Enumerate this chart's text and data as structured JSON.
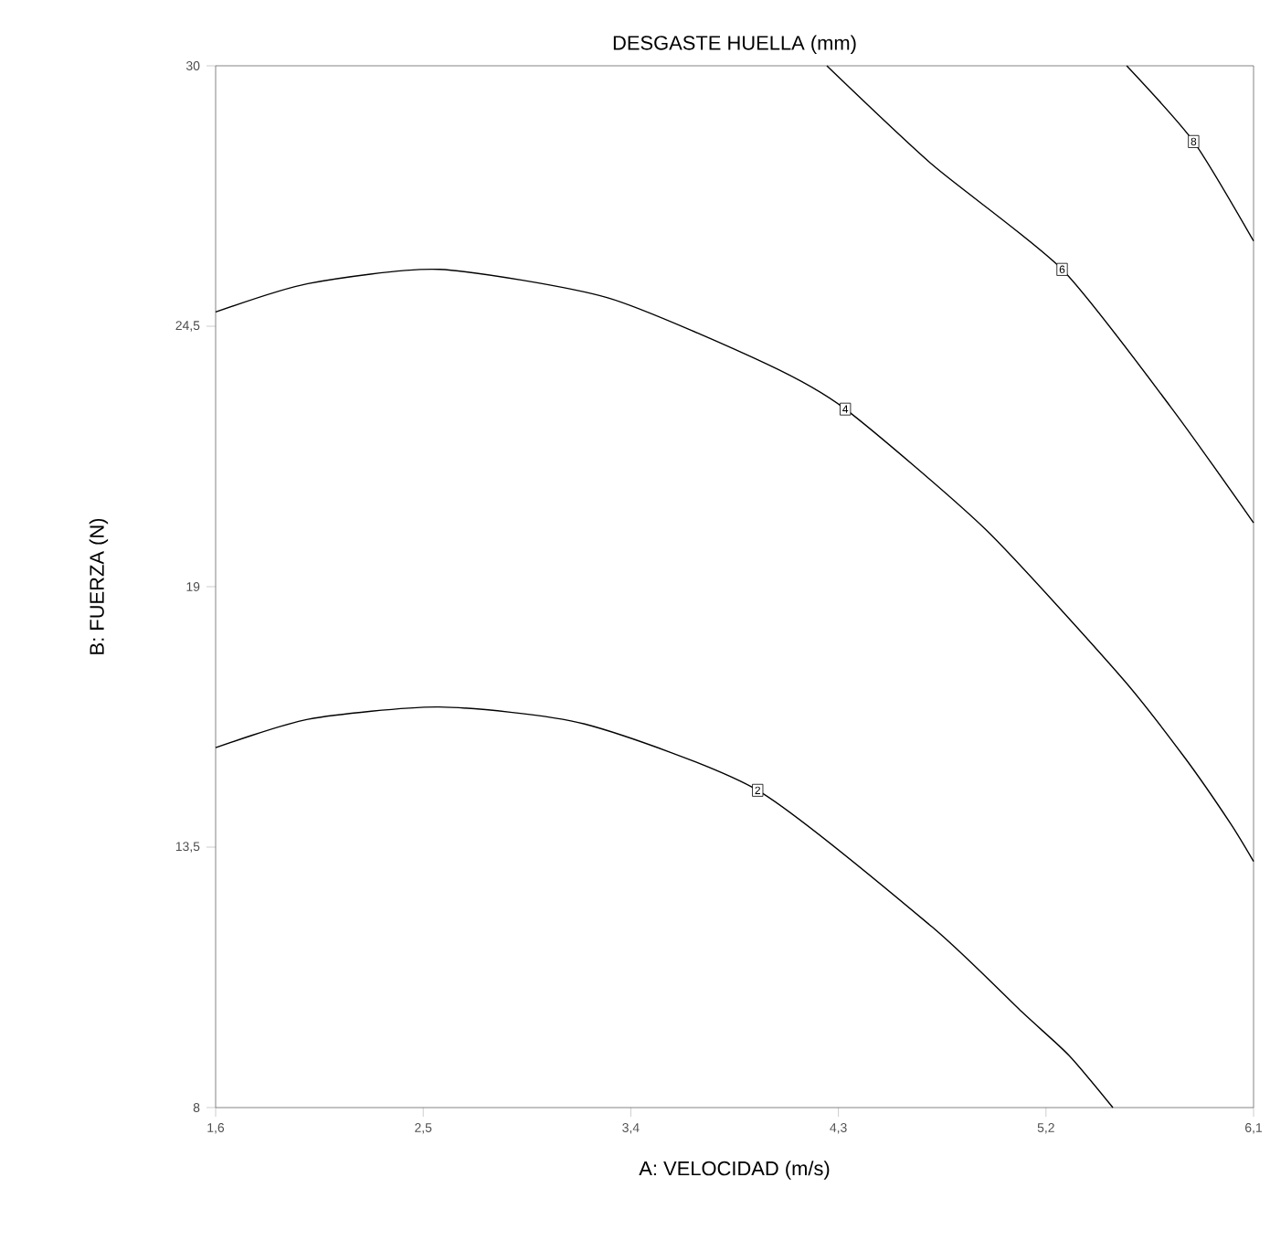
{
  "chart_data": {
    "type": "line",
    "title": "DESGASTE HUELLA (mm)",
    "xlabel": "A: VELOCIDAD (m/s)",
    "ylabel": "B: FUERZA (N)",
    "xlim": [
      1.6,
      6.1
    ],
    "ylim": [
      8,
      30
    ],
    "xticks": [
      {
        "value": 1.6,
        "label": "1,6"
      },
      {
        "value": 2.5,
        "label": "2,5"
      },
      {
        "value": 3.4,
        "label": "3,4"
      },
      {
        "value": 4.3,
        "label": "4,3"
      },
      {
        "value": 5.2,
        "label": "5,2"
      },
      {
        "value": 6.1,
        "label": "6,1"
      }
    ],
    "yticks": [
      8,
      {
        "value": 13.5,
        "label": "13,5"
      },
      19,
      {
        "value": 24.5,
        "label": "24,5"
      },
      30
    ],
    "marker": "none",
    "line_style": "solid",
    "grid": false,
    "legend": false,
    "series": [
      {
        "name": "2",
        "color": "#000000",
        "x": [
          1.6,
          2.0,
          2.57,
          3.2,
          3.95,
          4.71,
          5.1,
          5.3,
          5.49
        ],
        "values": [
          15.6,
          16.2,
          16.46,
          16.1,
          14.7,
          11.8,
          10.0,
          9.1,
          8
        ]
      },
      {
        "name": "4",
        "color": "#000000",
        "x": [
          1.6,
          2.0,
          2.57,
          3.3,
          3.99,
          4.33,
          4.94,
          5.53,
          5.8,
          6.0,
          6.1
        ],
        "values": [
          24.8,
          25.4,
          25.7,
          25.1,
          23.7,
          22.75,
          20.2,
          17.07,
          15.4,
          14.0,
          13.2
        ]
      },
      {
        "name": "6",
        "color": "#000000",
        "x": [
          4.25,
          4.71,
          5.27,
          5.74,
          6.1
        ],
        "values": [
          30,
          27.9,
          25.7,
          22.8,
          20.35
        ]
      },
      {
        "name": "8",
        "color": "#000000",
        "x": [
          5.55,
          5.84,
          6.1
        ],
        "values": [
          30,
          28.4,
          26.3
        ]
      }
    ]
  }
}
